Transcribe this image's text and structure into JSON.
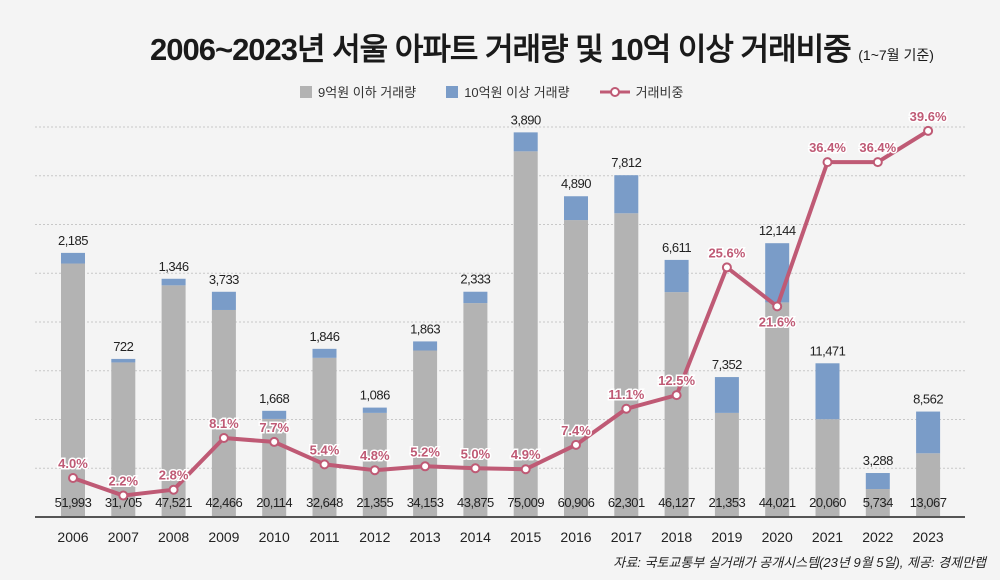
{
  "title": "2006~2023년 서울 아파트 거래량 및 10억 이상 거래비중",
  "title_note": "(1~7월 기준)",
  "source": "자료: 국토교통부 실거래가 공개시스템(23년 9월 5일), 제공: 경제만랩",
  "colors": {
    "below": "#b3b3b3",
    "above": "#7a9cc8",
    "ratio": "#bf5a75"
  },
  "chart_data": {
    "type": "bar",
    "stacked": true,
    "categories": [
      "2006",
      "2007",
      "2008",
      "2009",
      "2010",
      "2011",
      "2012",
      "2013",
      "2014",
      "2015",
      "2016",
      "2017",
      "2018",
      "2019",
      "2020",
      "2021",
      "2022",
      "2023"
    ],
    "series": [
      {
        "name": "9억원 이하 거래량",
        "type": "bar",
        "values": [
          51993,
          31705,
          47521,
          42466,
          20114,
          32648,
          21355,
          34153,
          43875,
          75009,
          60906,
          62301,
          46127,
          21353,
          44021,
          20060,
          5734,
          13067
        ]
      },
      {
        "name": "10억원 이상 거래량",
        "type": "bar",
        "values": [
          2185,
          722,
          1346,
          3733,
          1668,
          1846,
          1086,
          1863,
          2333,
          3890,
          4890,
          7812,
          6611,
          7352,
          12144,
          11471,
          3288,
          8562
        ]
      },
      {
        "name": "거래비중",
        "type": "line",
        "unit": "%",
        "values": [
          4.0,
          2.2,
          2.8,
          8.1,
          7.7,
          5.4,
          4.8,
          5.2,
          5.0,
          4.9,
          7.4,
          11.1,
          12.5,
          25.6,
          21.6,
          36.4,
          36.4,
          39.6
        ]
      }
    ],
    "ylim": [
      0,
      80000
    ],
    "y2lim": [
      0,
      40
    ],
    "grid": true,
    "legend": "top"
  }
}
